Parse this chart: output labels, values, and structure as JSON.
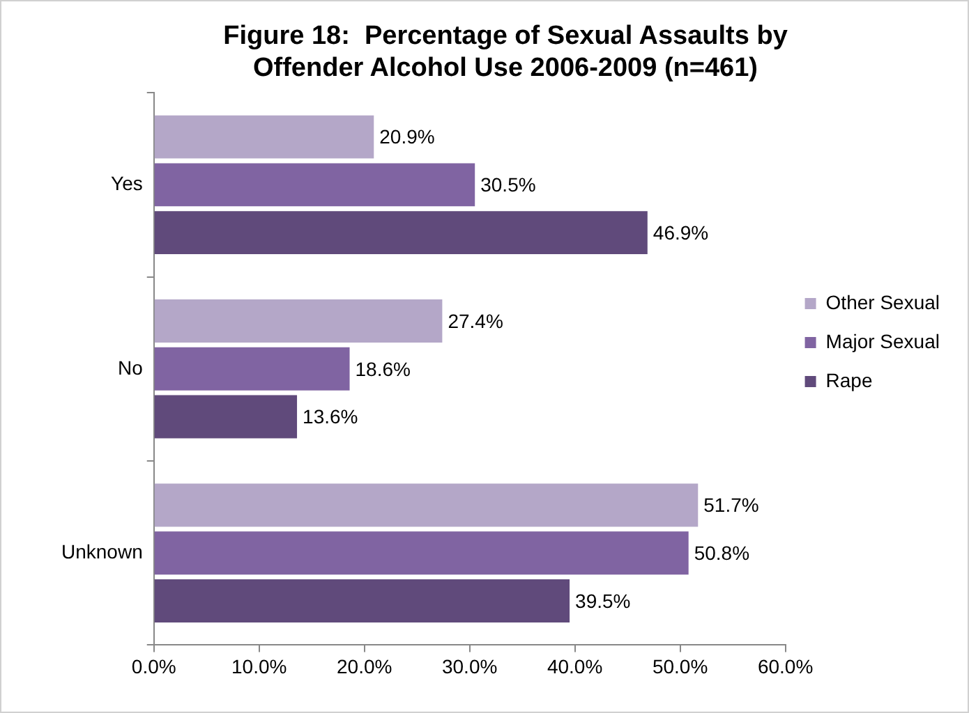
{
  "chart_data": {
    "type": "bar",
    "orientation": "horizontal",
    "title": "Figure 18:  Percentage of Sexual Assaults by Offender Alcohol Use 2006-2009 (n=461)",
    "categories": [
      "Yes",
      "No",
      "Unknown"
    ],
    "series": [
      {
        "name": "Other Sexual",
        "color": "#b4a7c8",
        "values": [
          20.9,
          27.4,
          51.7
        ],
        "value_labels": [
          "20.9%",
          "27.4%",
          "51.7%"
        ]
      },
      {
        "name": "Major Sexual",
        "color": "#8064a2",
        "values": [
          30.5,
          18.6,
          50.8
        ],
        "value_labels": [
          "30.5%",
          "18.6%",
          "50.8%"
        ]
      },
      {
        "name": "Rape",
        "color": "#604a7b",
        "values": [
          46.9,
          13.6,
          39.5
        ],
        "value_labels": [
          "46.9%",
          "13.6%",
          "39.5%"
        ]
      }
    ],
    "xlim": [
      0,
      60
    ],
    "xticks": [
      {
        "value": 0,
        "label": "0.0%"
      },
      {
        "value": 10,
        "label": "10.0%"
      },
      {
        "value": 20,
        "label": "20.0%"
      },
      {
        "value": 30,
        "label": "30.0%"
      },
      {
        "value": 40,
        "label": "40.0%"
      },
      {
        "value": 50,
        "label": "50.0%"
      },
      {
        "value": 60,
        "label": "60.0%"
      }
    ],
    "grid": false,
    "legend": "right"
  }
}
